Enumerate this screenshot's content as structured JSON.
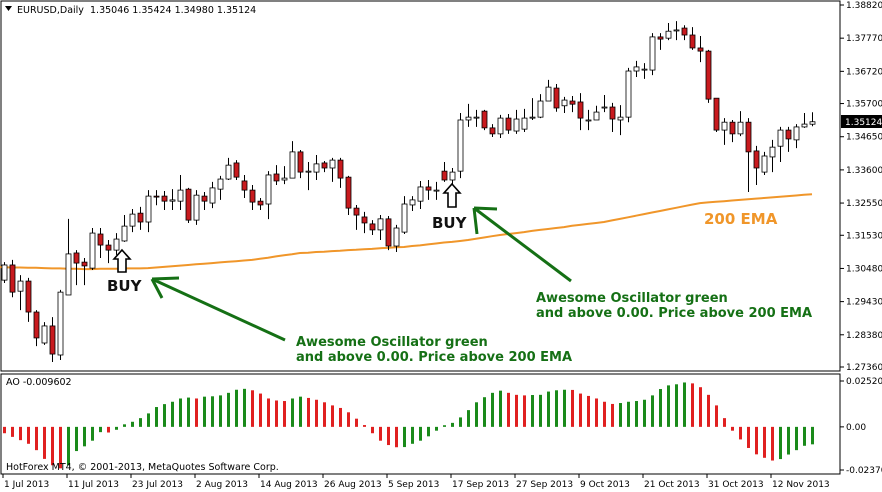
{
  "header": {
    "symbol": "EURUSD,Daily",
    "ohlc_text": "1.35046 1.35424 1.34980 1.35124"
  },
  "ao_label": "AO -0.009602",
  "copyright": "HotForex MT4, © 2001-2013, MetaQuotes Software Corp.",
  "current_price_label": "1.35124",
  "annotations": {
    "buy1": "BUY",
    "buy2": "BUY",
    "note1_line1": "Awesome Oscillator green",
    "note1_line2": "and above 0.00. Price above 200 EMA",
    "note2_line1": "Awesome Oscillator green",
    "note2_line2": "and above 0.00. Price above 200 EMA",
    "ema_label": "200 EMA"
  },
  "colors": {
    "bear": "#c81a1e",
    "bull": "#ffffff",
    "ema": "#f0962a",
    "ao_up": "#1a8a1a",
    "ao_down": "#e02020",
    "annotation": "#157015"
  },
  "chart_data": [
    {
      "type": "candlestick",
      "title": "EURUSD,Daily",
      "ylim": [
        1.2736,
        1.3882
      ],
      "y_ticks": [
        "1.38820",
        "1.37770",
        "1.36720",
        "1.35700",
        "1.34650",
        "1.33600",
        "1.32550",
        "1.31530",
        "1.30480",
        "1.29430",
        "1.28380",
        "1.27360"
      ],
      "x_ticks": [
        "1 Jul 2013",
        "11 Jul 2013",
        "23 Jul 2013",
        "2 Aug 2013",
        "14 Aug 2013",
        "26 Aug 2013",
        "5 Sep 2013",
        "17 Sep 2013",
        "27 Sep 2013",
        "9 Oct 2013",
        "21 Oct 2013",
        "31 Oct 2013",
        "12 Nov 2013"
      ],
      "x_tick_every_bars": 8,
      "grid": false,
      "ohlc": [
        [
          1.3011,
          1.3068,
          1.3002,
          1.3059
        ],
        [
          1.3059,
          1.3075,
          1.2957,
          1.2973
        ],
        [
          1.2976,
          1.3027,
          1.2916,
          1.3008
        ],
        [
          1.3008,
          1.3018,
          1.2879,
          1.291
        ],
        [
          1.291,
          1.2916,
          1.2802,
          1.2828
        ],
        [
          1.2812,
          1.2878,
          1.2806,
          1.2866
        ],
        [
          1.2866,
          1.2894,
          1.2752,
          1.2777
        ],
        [
          1.2774,
          1.298,
          1.2758,
          1.2973
        ],
        [
          1.2964,
          1.3205,
          1.2964,
          1.3094
        ],
        [
          1.3097,
          1.3106,
          1.2995,
          1.3065
        ],
        [
          1.3068,
          1.3081,
          1.2995,
          1.3056
        ],
        [
          1.3049,
          1.3176,
          1.3043,
          1.316
        ],
        [
          1.3157,
          1.3176,
          1.3081,
          1.3122
        ],
        [
          1.3122,
          1.3138,
          1.3065,
          1.3106
        ],
        [
          1.3106,
          1.316,
          1.3091,
          1.3141
        ],
        [
          1.3135,
          1.3217,
          1.3132,
          1.3182
        ],
        [
          1.3182,
          1.3236,
          1.3163,
          1.322
        ],
        [
          1.3223,
          1.3243,
          1.317,
          1.3195
        ],
        [
          1.3195,
          1.3296,
          1.3163,
          1.3277
        ],
        [
          1.3277,
          1.3296,
          1.3248,
          1.3274
        ],
        [
          1.3277,
          1.3293,
          1.3233,
          1.3261
        ],
        [
          1.3261,
          1.3299,
          1.3233,
          1.3265
        ],
        [
          1.3261,
          1.3344,
          1.3233,
          1.3296
        ],
        [
          1.3299,
          1.3303,
          1.3192,
          1.3201
        ],
        [
          1.3201,
          1.3296,
          1.3186,
          1.328
        ],
        [
          1.3277,
          1.329,
          1.3233,
          1.3261
        ],
        [
          1.3255,
          1.3322,
          1.3239,
          1.3303
        ],
        [
          1.3299,
          1.3341,
          1.3265,
          1.3331
        ],
        [
          1.3331,
          1.3398,
          1.3328,
          1.3375
        ],
        [
          1.3382,
          1.3391,
          1.3328,
          1.3337
        ],
        [
          1.3325,
          1.3344,
          1.3271,
          1.3296
        ],
        [
          1.3296,
          1.3312,
          1.3233,
          1.3258
        ],
        [
          1.3261,
          1.3271,
          1.3233,
          1.3249
        ],
        [
          1.3252,
          1.3356,
          1.3204,
          1.3344
        ],
        [
          1.3347,
          1.3375,
          1.3312,
          1.3325
        ],
        [
          1.3328,
          1.3372,
          1.3315,
          1.3334
        ],
        [
          1.3334,
          1.3451,
          1.3334,
          1.3417
        ],
        [
          1.3417,
          1.3423,
          1.3334,
          1.3353
        ],
        [
          1.3356,
          1.3385,
          1.3296,
          1.3356
        ],
        [
          1.3353,
          1.3407,
          1.3328,
          1.3379
        ],
        [
          1.3382,
          1.3388,
          1.3353,
          1.3366
        ],
        [
          1.3366,
          1.3398,
          1.3322,
          1.3391
        ],
        [
          1.3391,
          1.3398,
          1.3303,
          1.3334
        ],
        [
          1.3337,
          1.3341,
          1.3217,
          1.3239
        ],
        [
          1.3239,
          1.3249,
          1.317,
          1.3217
        ],
        [
          1.3211,
          1.3227,
          1.316,
          1.3192
        ],
        [
          1.3189,
          1.3201,
          1.3154,
          1.317
        ],
        [
          1.317,
          1.3217,
          1.3138,
          1.3205
        ],
        [
          1.3205,
          1.3214,
          1.3106,
          1.3119
        ],
        [
          1.3119,
          1.3186,
          1.31,
          1.3176
        ],
        [
          1.3163,
          1.3277,
          1.3157,
          1.3252
        ],
        [
          1.3249,
          1.3277,
          1.323,
          1.3265
        ],
        [
          1.3261,
          1.3325,
          1.3236,
          1.3306
        ],
        [
          1.3306,
          1.3328,
          1.3265,
          1.3296
        ],
        [
          1.3296,
          1.3322,
          1.3265,
          1.3296
        ],
        [
          1.3356,
          1.3385,
          1.3322,
          1.3328
        ],
        [
          1.3328,
          1.3366,
          1.3309,
          1.3353
        ],
        [
          1.3356,
          1.354,
          1.3334,
          1.3518
        ],
        [
          1.3518,
          1.3569,
          1.3496,
          1.3527
        ],
        [
          1.3527,
          1.355,
          1.3496,
          1.3527
        ],
        [
          1.3546,
          1.355,
          1.3486,
          1.3493
        ],
        [
          1.3493,
          1.3505,
          1.3464,
          1.3474
        ],
        [
          1.3474,
          1.3534,
          1.3461,
          1.3524
        ],
        [
          1.3524,
          1.3537,
          1.3474,
          1.3486
        ],
        [
          1.3483,
          1.355,
          1.3474,
          1.3521
        ],
        [
          1.3489,
          1.3553,
          1.348,
          1.3524
        ],
        [
          1.3527,
          1.3587,
          1.3518,
          1.3527
        ],
        [
          1.3527,
          1.36,
          1.3524,
          1.3578
        ],
        [
          1.3578,
          1.3645,
          1.3578,
          1.3622
        ],
        [
          1.3619,
          1.3632,
          1.3544,
          1.3556
        ],
        [
          1.3563,
          1.3591,
          1.354,
          1.3581
        ],
        [
          1.3578,
          1.3594,
          1.3543,
          1.3568
        ],
        [
          1.3575,
          1.3603,
          1.3486,
          1.3524
        ],
        [
          1.3518,
          1.355,
          1.3486,
          1.3518
        ],
        [
          1.3518,
          1.3563,
          1.3518,
          1.3543
        ],
        [
          1.3559,
          1.3597,
          1.3543,
          1.3559
        ],
        [
          1.3559,
          1.3572,
          1.348,
          1.3521
        ],
        [
          1.3518,
          1.3565,
          1.347,
          1.3527
        ],
        [
          1.3527,
          1.3683,
          1.3511,
          1.3673
        ],
        [
          1.3673,
          1.3705,
          1.3654,
          1.3686
        ],
        [
          1.3679,
          1.3698,
          1.3648,
          1.3679
        ],
        [
          1.3676,
          1.3793,
          1.366,
          1.3781
        ],
        [
          1.3781,
          1.3793,
          1.374,
          1.3774
        ],
        [
          1.3777,
          1.3825,
          1.3771,
          1.3799
        ],
        [
          1.3803,
          1.3831,
          1.3771,
          1.3803
        ],
        [
          1.3809,
          1.3818,
          1.3771,
          1.3787
        ],
        [
          1.3787,
          1.3812,
          1.374,
          1.3746
        ],
        [
          1.3746,
          1.3784,
          1.3701,
          1.3736
        ],
        [
          1.3736,
          1.374,
          1.3572,
          1.3584
        ],
        [
          1.3587,
          1.3587,
          1.348,
          1.3486
        ],
        [
          1.3486,
          1.3524,
          1.3439,
          1.3511
        ],
        [
          1.3511,
          1.3518,
          1.3448,
          1.3474
        ],
        [
          1.3474,
          1.3546,
          1.3467,
          1.3511
        ],
        [
          1.3511,
          1.3524,
          1.329,
          1.3417
        ],
        [
          1.342,
          1.3436,
          1.3312,
          1.3366
        ],
        [
          1.3353,
          1.3417,
          1.3344,
          1.3404
        ],
        [
          1.3401,
          1.3455,
          1.3353,
          1.3432
        ],
        [
          1.3435,
          1.3496,
          1.3385,
          1.3486
        ],
        [
          1.3486,
          1.3496,
          1.3417,
          1.3458
        ],
        [
          1.3455,
          1.3505,
          1.3429,
          1.3496
        ],
        [
          1.3496,
          1.354,
          1.3493,
          1.3505
        ],
        [
          1.35046,
          1.35424,
          1.3498,
          1.35124
        ]
      ],
      "ema200": [
        1.3052,
        1.3051,
        1.3051,
        1.305,
        1.305,
        1.3049,
        1.3048,
        1.3048,
        1.3047,
        1.3047,
        1.3046,
        1.3046,
        1.3047,
        1.3047,
        1.3047,
        1.3048,
        1.3048,
        1.3048,
        1.3049,
        1.3051,
        1.3053,
        1.3055,
        1.3057,
        1.3059,
        1.3061,
        1.3063,
        1.3065,
        1.3067,
        1.3069,
        1.3071,
        1.3073,
        1.3075,
        1.3079,
        1.3082,
        1.3086,
        1.309,
        1.3093,
        1.3097,
        1.3098,
        1.31,
        1.3101,
        1.3103,
        1.3104,
        1.3106,
        1.3107,
        1.3109,
        1.311,
        1.3112,
        1.3113,
        1.3115,
        1.3116,
        1.3119,
        1.3121,
        1.3124,
        1.3127,
        1.313,
        1.3132,
        1.3135,
        1.3138,
        1.3142,
        1.3146,
        1.315,
        1.3154,
        1.3157,
        1.316,
        1.3163,
        1.3167,
        1.317,
        1.3173,
        1.3176,
        1.3179,
        1.3183,
        1.3186,
        1.3189,
        1.3192,
        1.3195,
        1.32,
        1.3205,
        1.321,
        1.3215,
        1.322,
        1.3225,
        1.323,
        1.3235,
        1.324,
        1.3245,
        1.325,
        1.3255,
        1.3257,
        1.3259,
        1.3261,
        1.3263,
        1.3265,
        1.3267,
        1.3269,
        1.3271,
        1.3273,
        1.3275,
        1.3277,
        1.3279,
        1.3281,
        1.3283
      ],
      "buy_signal_bars": [
        14,
        56
      ]
    },
    {
      "type": "bar",
      "title": "AO -0.009602",
      "ylim": [
        -0.023706,
        0.025207
      ],
      "y_ticks": [
        "0.025207",
        "0.00",
        "-0.023706"
      ],
      "values": [
        -0.0035,
        -0.0055,
        -0.0073,
        -0.0093,
        -0.0128,
        -0.0176,
        -0.0211,
        -0.0228,
        -0.0211,
        -0.0133,
        -0.0107,
        -0.0076,
        -0.0029,
        -0.0031,
        -0.0016,
        0.0014,
        0.0028,
        0.0048,
        0.0074,
        0.0109,
        0.0125,
        0.0138,
        0.0156,
        0.0161,
        0.0156,
        0.0166,
        0.0168,
        0.0173,
        0.0187,
        0.0204,
        0.0209,
        0.0201,
        0.0183,
        0.0156,
        0.0145,
        0.0142,
        0.0156,
        0.0166,
        0.0159,
        0.0149,
        0.0135,
        0.0118,
        0.0104,
        0.008,
        0.0045,
        0.001,
        -0.0035,
        -0.0076,
        -0.01,
        -0.0112,
        -0.0111,
        -0.0093,
        -0.0076,
        -0.0052,
        -0.0021,
        0.0009,
        0.0022,
        0.0052,
        0.0092,
        0.0135,
        0.0163,
        0.0187,
        0.0199,
        0.0187,
        0.0176,
        0.0173,
        0.0175,
        0.0176,
        0.0194,
        0.0201,
        0.0204,
        0.0203,
        0.0183,
        0.017,
        0.0156,
        0.0138,
        0.0126,
        0.0131,
        0.0138,
        0.0142,
        0.0149,
        0.0173,
        0.0208,
        0.0228,
        0.0234,
        0.0244,
        0.0239,
        0.0218,
        0.0176,
        0.0118,
        0.0048,
        -0.0021,
        -0.0069,
        -0.0116,
        -0.0151,
        -0.017,
        -0.0185,
        -0.0177,
        -0.0152,
        -0.0128,
        -0.0104,
        -0.009602
      ]
    }
  ]
}
